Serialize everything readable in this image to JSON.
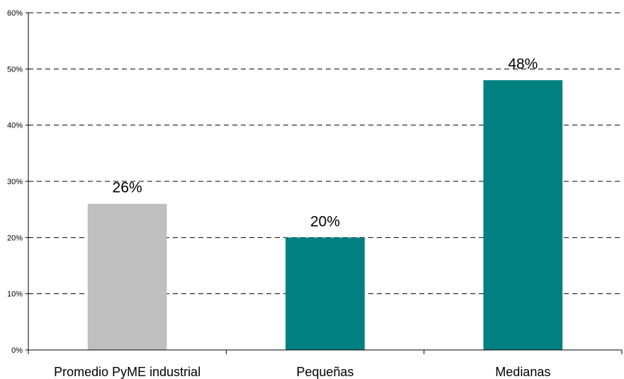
{
  "chart_data": {
    "type": "bar",
    "categories": [
      "Promedio PyME industrial",
      "Pequeñas",
      "Medianas"
    ],
    "values": [
      26,
      20,
      48
    ],
    "data_labels": [
      "26%",
      "20%",
      "48%"
    ],
    "bar_colors": [
      "#bfbfbf",
      "#008080",
      "#008080"
    ],
    "ylim": [
      0,
      60
    ],
    "y_ticks": [
      0,
      10,
      20,
      30,
      40,
      50,
      60
    ],
    "y_tick_labels": [
      "0%",
      "10%",
      "20%",
      "30%",
      "40%",
      "50%",
      "60%"
    ],
    "grid": true,
    "grid_style": "dashed",
    "legend": false,
    "title": "",
    "xlabel": "",
    "ylabel": ""
  }
}
